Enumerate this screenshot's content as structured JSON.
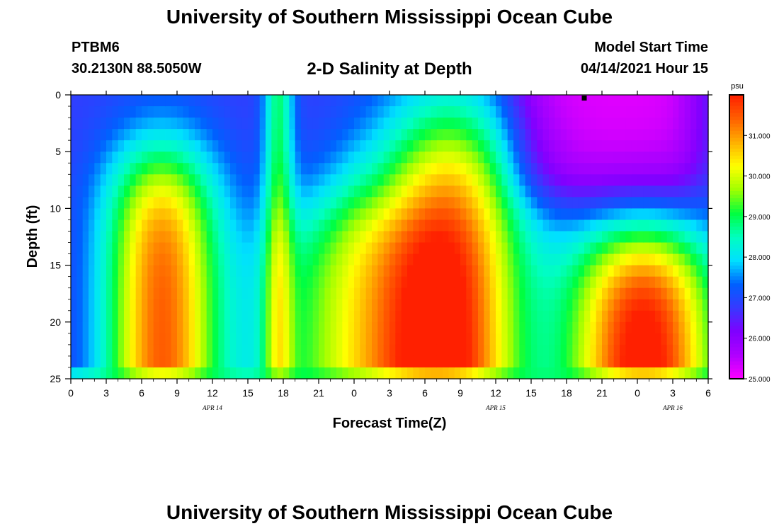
{
  "header": {
    "title": "University of Southern Mississippi Ocean Cube",
    "station_id": "PTBM6",
    "station_coords": "30.2130N  88.5050W",
    "chart_title": "2-D Salinity at Depth",
    "model_start_label": "Model Start Time",
    "model_start_value": "04/14/2021 Hour 15"
  },
  "footer": {
    "title": "University of Southern Mississippi Ocean Cube"
  },
  "colors": {
    "palette": [
      "#ff00ff",
      "#b000ff",
      "#8000ff",
      "#3838ff",
      "#0060ff",
      "#00e0ff",
      "#00ffc0",
      "#00ff40",
      "#a0ff00",
      "#ffff00",
      "#ffb000",
      "#ff6000",
      "#ff2000"
    ]
  },
  "chart_data": {
    "type": "heatmap",
    "title": "2-D Salinity at Depth",
    "xlabel": "Forecast Time(Z)",
    "ylabel": "Depth (ft)",
    "x_hours_since_start": [
      0,
      54
    ],
    "x_tick_labels": [
      "0",
      "3",
      "6",
      "9",
      "12",
      "15",
      "18",
      "21",
      "0",
      "3",
      "6",
      "9",
      "12",
      "15",
      "18",
      "21",
      "0",
      "3",
      "6"
    ],
    "date_labels": [
      {
        "label": "APR  14",
        "x_hour": 12
      },
      {
        "label": "APR  15",
        "x_hour": 36
      },
      {
        "label": "APR  16",
        "x_hour": 51
      }
    ],
    "ylim": [
      0,
      25
    ],
    "y_ticks": [
      0,
      5,
      10,
      15,
      20,
      25
    ],
    "y_inverted": true,
    "colorbar": {
      "unit": "psu",
      "min": 25.0,
      "max": 32.0,
      "tick_labels": [
        "25.000",
        "26.000",
        "27.000",
        "28.000",
        "29.000",
        "30.000",
        "31.000"
      ],
      "tick_values": [
        25,
        26,
        27,
        28,
        29,
        30,
        31
      ]
    },
    "marker": {
      "x_hour": 43.5,
      "depth": 0
    }
  }
}
